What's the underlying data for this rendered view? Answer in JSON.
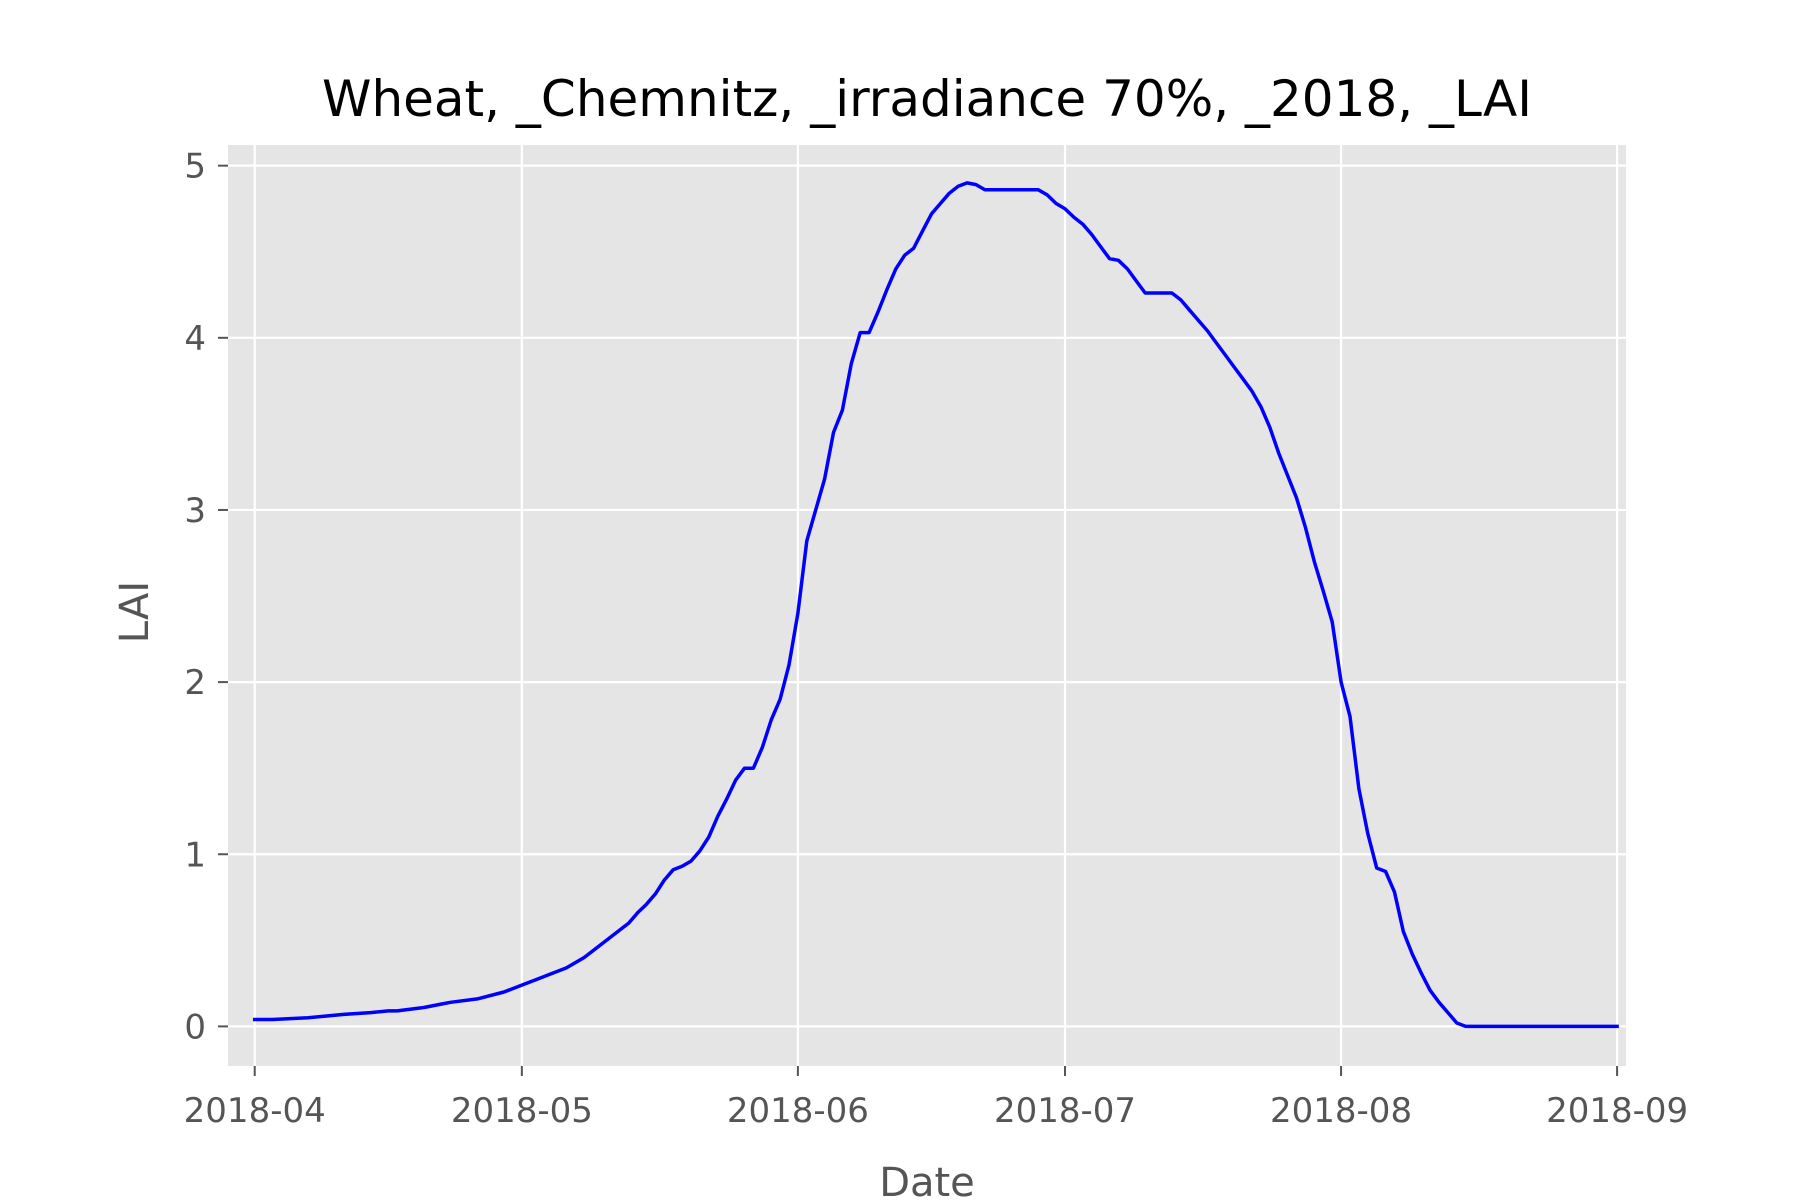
{
  "chart_data": {
    "type": "line",
    "title": "Wheat, _Chemnitz, _irradiance 70%, _2018, _LAI",
    "xlabel": "Date",
    "ylabel": "LAI",
    "x_scale": "date",
    "xlim": [
      "2018-03-29",
      "2018-09-02"
    ],
    "ylim": [
      -0.23,
      5.12
    ],
    "xticks": [
      "2018-04-01",
      "2018-05-01",
      "2018-06-01",
      "2018-07-01",
      "2018-08-01",
      "2018-09-01"
    ],
    "xtick_labels": [
      "2018-04",
      "2018-05",
      "2018-06",
      "2018-07",
      "2018-08",
      "2018-09"
    ],
    "yticks": [
      0,
      1,
      2,
      3,
      4,
      5
    ],
    "ytick_labels": [
      "0",
      "1",
      "2",
      "3",
      "4",
      "5"
    ],
    "grid": true,
    "background": "#e5e5e5",
    "gridline_color": "#ffffff",
    "series": [
      {
        "color": "#0000ff",
        "x": [
          "2018-04-01",
          "2018-04-03",
          "2018-04-07",
          "2018-04-11",
          "2018-04-14",
          "2018-04-16",
          "2018-04-17",
          "2018-04-20",
          "2018-04-22",
          "2018-04-23",
          "2018-04-26",
          "2018-04-29",
          "2018-05-01",
          "2018-05-03",
          "2018-05-04",
          "2018-05-06",
          "2018-05-08",
          "2018-05-10",
          "2018-05-13",
          "2018-05-14",
          "2018-05-15",
          "2018-05-16",
          "2018-05-17",
          "2018-05-18",
          "2018-05-19",
          "2018-05-20",
          "2018-05-21",
          "2018-05-22",
          "2018-05-23",
          "2018-05-24",
          "2018-05-25",
          "2018-05-26",
          "2018-05-27",
          "2018-05-28",
          "2018-05-29",
          "2018-05-30",
          "2018-05-31",
          "2018-06-01",
          "2018-06-02",
          "2018-06-03",
          "2018-06-04",
          "2018-06-05",
          "2018-06-06",
          "2018-06-07",
          "2018-06-08",
          "2018-06-09",
          "2018-06-10",
          "2018-06-11",
          "2018-06-12",
          "2018-06-13",
          "2018-06-14",
          "2018-06-15",
          "2018-06-16",
          "2018-06-17",
          "2018-06-18",
          "2018-06-19",
          "2018-06-20",
          "2018-06-21",
          "2018-06-22",
          "2018-06-26",
          "2018-06-28",
          "2018-06-29",
          "2018-06-30",
          "2018-07-01",
          "2018-07-02",
          "2018-07-03",
          "2018-07-04",
          "2018-07-05",
          "2018-07-06",
          "2018-07-07",
          "2018-07-08",
          "2018-07-09",
          "2018-07-10",
          "2018-07-13",
          "2018-07-14",
          "2018-07-15",
          "2018-07-16",
          "2018-07-17",
          "2018-07-18",
          "2018-07-19",
          "2018-07-20",
          "2018-07-21",
          "2018-07-22",
          "2018-07-23",
          "2018-07-24",
          "2018-07-25",
          "2018-07-26",
          "2018-07-27",
          "2018-07-28",
          "2018-07-29",
          "2018-07-30",
          "2018-07-31",
          "2018-08-01",
          "2018-08-02",
          "2018-08-03",
          "2018-08-04",
          "2018-08-05",
          "2018-08-06",
          "2018-08-07",
          "2018-08-08",
          "2018-08-09",
          "2018-08-10",
          "2018-08-11",
          "2018-08-12",
          "2018-08-13",
          "2018-08-14",
          "2018-08-15",
          "2018-08-16",
          "2018-09-01"
        ],
        "y": [
          0.04,
          0.04,
          0.05,
          0.07,
          0.08,
          0.09,
          0.09,
          0.11,
          0.13,
          0.14,
          0.16,
          0.2,
          0.24,
          0.28,
          0.3,
          0.34,
          0.4,
          0.48,
          0.6,
          0.66,
          0.71,
          0.77,
          0.85,
          0.91,
          0.93,
          0.96,
          1.02,
          1.1,
          1.22,
          1.32,
          1.43,
          1.5,
          1.5,
          1.62,
          1.78,
          1.9,
          2.1,
          2.4,
          2.82,
          3.0,
          3.18,
          3.45,
          3.58,
          3.85,
          4.03,
          4.03,
          4.15,
          4.28,
          4.4,
          4.48,
          4.52,
          4.62,
          4.72,
          4.78,
          4.84,
          4.88,
          4.9,
          4.89,
          4.86,
          4.86,
          4.86,
          4.83,
          4.78,
          4.75,
          4.7,
          4.66,
          4.6,
          4.53,
          4.46,
          4.45,
          4.4,
          4.33,
          4.26,
          4.26,
          4.22,
          4.16,
          4.1,
          4.04,
          3.97,
          3.9,
          3.83,
          3.76,
          3.69,
          3.6,
          3.48,
          3.33,
          3.2,
          3.07,
          2.9,
          2.7,
          2.53,
          2.35,
          2.0,
          1.8,
          1.38,
          1.12,
          0.92,
          0.9,
          0.78,
          0.55,
          0.42,
          0.31,
          0.21,
          0.14,
          0.08,
          0.02,
          0.0,
          0.0,
          0.0
        ]
      }
    ]
  }
}
